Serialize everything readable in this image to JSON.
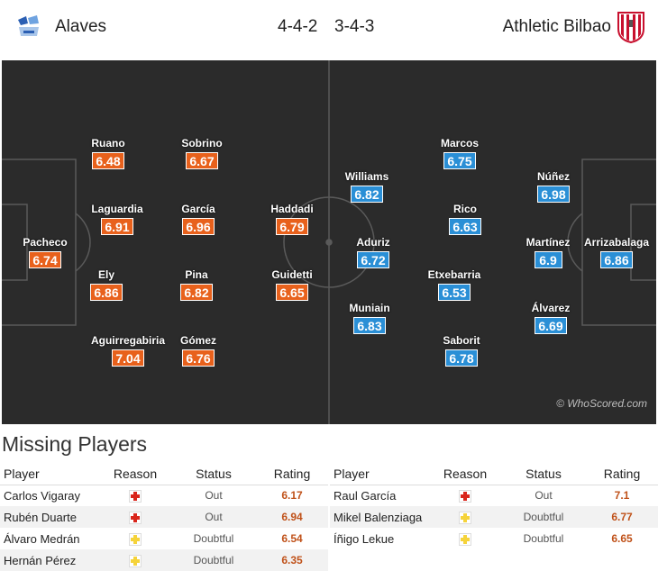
{
  "header": {
    "home_team": "Alaves",
    "away_team": "Athletic Bilbao",
    "home_formation": "4-4-2",
    "away_formation": "3-4-3"
  },
  "pitch": {
    "watermark": "© WhoScored.com",
    "home_players": [
      {
        "name": "Pacheco",
        "rating": "6.74"
      },
      {
        "name": "Ruano",
        "rating": "6.48"
      },
      {
        "name": "Laguardia",
        "rating": "6.91"
      },
      {
        "name": "Ely",
        "rating": "6.86"
      },
      {
        "name": "Aguirregabiria",
        "rating": "7.04"
      },
      {
        "name": "Sobrino",
        "rating": "6.67"
      },
      {
        "name": "García",
        "rating": "6.96"
      },
      {
        "name": "Pina",
        "rating": "6.82"
      },
      {
        "name": "Gómez",
        "rating": "6.76"
      },
      {
        "name": "Haddadi",
        "rating": "6.79"
      },
      {
        "name": "Guidetti",
        "rating": "6.65"
      }
    ],
    "away_players": [
      {
        "name": "Williams",
        "rating": "6.82"
      },
      {
        "name": "Aduriz",
        "rating": "6.72"
      },
      {
        "name": "Muniain",
        "rating": "6.83"
      },
      {
        "name": "Marcos",
        "rating": "6.75"
      },
      {
        "name": "Rico",
        "rating": "6.63"
      },
      {
        "name": "Etxebarria",
        "rating": "6.53"
      },
      {
        "name": "Saborit",
        "rating": "6.78"
      },
      {
        "name": "Núñez",
        "rating": "6.98"
      },
      {
        "name": "Martínez",
        "rating": "6.9"
      },
      {
        "name": "Álvarez",
        "rating": "6.69"
      },
      {
        "name": "Arrizabalaga",
        "rating": "6.86"
      }
    ]
  },
  "missing": {
    "title": "Missing Players",
    "columns": {
      "player": "Player",
      "reason": "Reason",
      "status": "Status",
      "rating": "Rating"
    },
    "home": [
      {
        "player": "Carlos Vigaray",
        "reason": "injury",
        "status": "Out",
        "rating": "6.17"
      },
      {
        "player": "Rubén Duarte",
        "reason": "injury",
        "status": "Out",
        "rating": "6.94"
      },
      {
        "player": "Álvaro Medrán",
        "reason": "doubtful",
        "status": "Doubtful",
        "rating": "6.54"
      },
      {
        "player": "Hernán Pérez",
        "reason": "doubtful",
        "status": "Doubtful",
        "rating": "6.35"
      }
    ],
    "away": [
      {
        "player": "Raul García",
        "reason": "injury",
        "status": "Out",
        "rating": "7.1"
      },
      {
        "player": "Mikel Balenziaga",
        "reason": "doubtful",
        "status": "Doubtful",
        "rating": "6.77"
      },
      {
        "player": "Íñigo Lekue",
        "reason": "doubtful",
        "status": "Doubtful",
        "rating": "6.65"
      }
    ]
  },
  "colors": {
    "home_rating": "#e8611c",
    "away_rating": "#2a8fd6",
    "pitch": "#2b2b2b",
    "injury_icon": "#d9261c",
    "doubtful_icon": "#f5d33a"
  }
}
